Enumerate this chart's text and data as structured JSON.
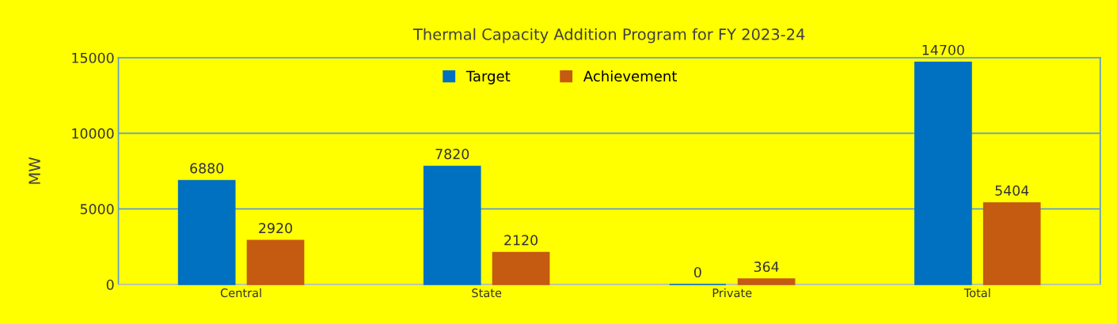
{
  "chart_data": {
    "type": "bar",
    "title": "Thermal Capacity Addition Program for FY 2023-24",
    "ylabel": "MW",
    "categories": [
      "Central",
      "State",
      "Private",
      "Total"
    ],
    "series": [
      {
        "name": "Target",
        "color": "#0070c0",
        "values": [
          6880,
          7820,
          0,
          14700
        ]
      },
      {
        "name": "Achievement",
        "color": "#c55a11",
        "values": [
          2920,
          2120,
          364,
          5404
        ]
      }
    ],
    "ylim": [
      0,
      15000
    ],
    "yticks": [
      0,
      5000,
      10000,
      15000
    ],
    "grid": "y",
    "legend": "top",
    "data_labels": true
  }
}
